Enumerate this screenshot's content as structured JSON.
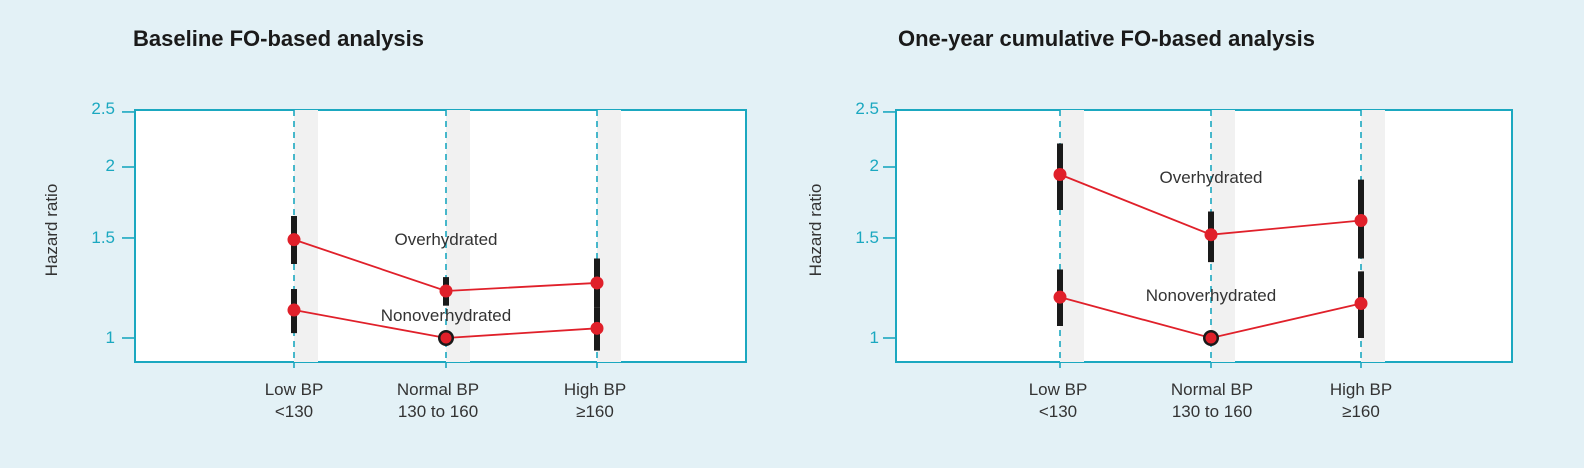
{
  "colors": {
    "background": "#e3f1f6",
    "axis": "#1ba8c0",
    "line": "#e0202a",
    "errorbar": "#1a1a1a",
    "reference_marker": "#1a1a1a"
  },
  "chart_data": [
    {
      "type": "line",
      "title": "Baseline FO-based analysis",
      "ylabel": "Hazard ratio",
      "xlabel": "",
      "y_scale": "log",
      "ylim": [
        0.92,
        2.5
      ],
      "yticks": [
        "1",
        "1.5",
        "2",
        "2.5"
      ],
      "ytick_values": [
        1,
        1.5,
        2,
        2.5
      ],
      "categories": [
        {
          "line1": "Low BP",
          "line2": "<130"
        },
        {
          "line1": "Normal BP",
          "line2": "130 to 160"
        },
        {
          "line1": "High BP",
          "line2": "≥160"
        }
      ],
      "grid": "dashed vertical lines at categories",
      "series": [
        {
          "name": "Overhydrated",
          "values": [
            1.49,
            1.21,
            1.25
          ],
          "ci_low": [
            1.35,
            1.14,
            1.13
          ],
          "ci_high": [
            1.64,
            1.28,
            1.38
          ],
          "reference_index": null
        },
        {
          "name": "Nonoverhydrated",
          "values": [
            1.12,
            1.0,
            1.04
          ],
          "ci_low": [
            1.02,
            1.0,
            0.95
          ],
          "ci_high": [
            1.22,
            1.0,
            1.13
          ],
          "reference_index": 1
        }
      ]
    },
    {
      "type": "line",
      "title": "One-year cumulative FO-based analysis",
      "ylabel": "Hazard ratio",
      "xlabel": "",
      "y_scale": "log",
      "ylim": [
        0.92,
        2.5
      ],
      "yticks": [
        "1",
        "1.5",
        "2",
        "2.5"
      ],
      "ytick_values": [
        1,
        1.5,
        2,
        2.5
      ],
      "categories": [
        {
          "line1": "Low BP",
          "line2": "<130"
        },
        {
          "line1": "Normal BP",
          "line2": "130 to 160"
        },
        {
          "line1": "High BP",
          "line2": "≥160"
        }
      ],
      "grid": "dashed vertical lines at categories",
      "series": [
        {
          "name": "Overhydrated",
          "values": [
            1.94,
            1.52,
            1.61
          ],
          "ci_low": [
            1.68,
            1.36,
            1.38
          ],
          "ci_high": [
            2.2,
            1.67,
            1.9
          ],
          "reference_index": null
        },
        {
          "name": "Nonoverhydrated",
          "values": [
            1.18,
            1.0,
            1.15
          ],
          "ci_low": [
            1.05,
            1.0,
            1.0
          ],
          "ci_high": [
            1.32,
            1.0,
            1.31
          ],
          "reference_index": 1
        }
      ]
    }
  ]
}
